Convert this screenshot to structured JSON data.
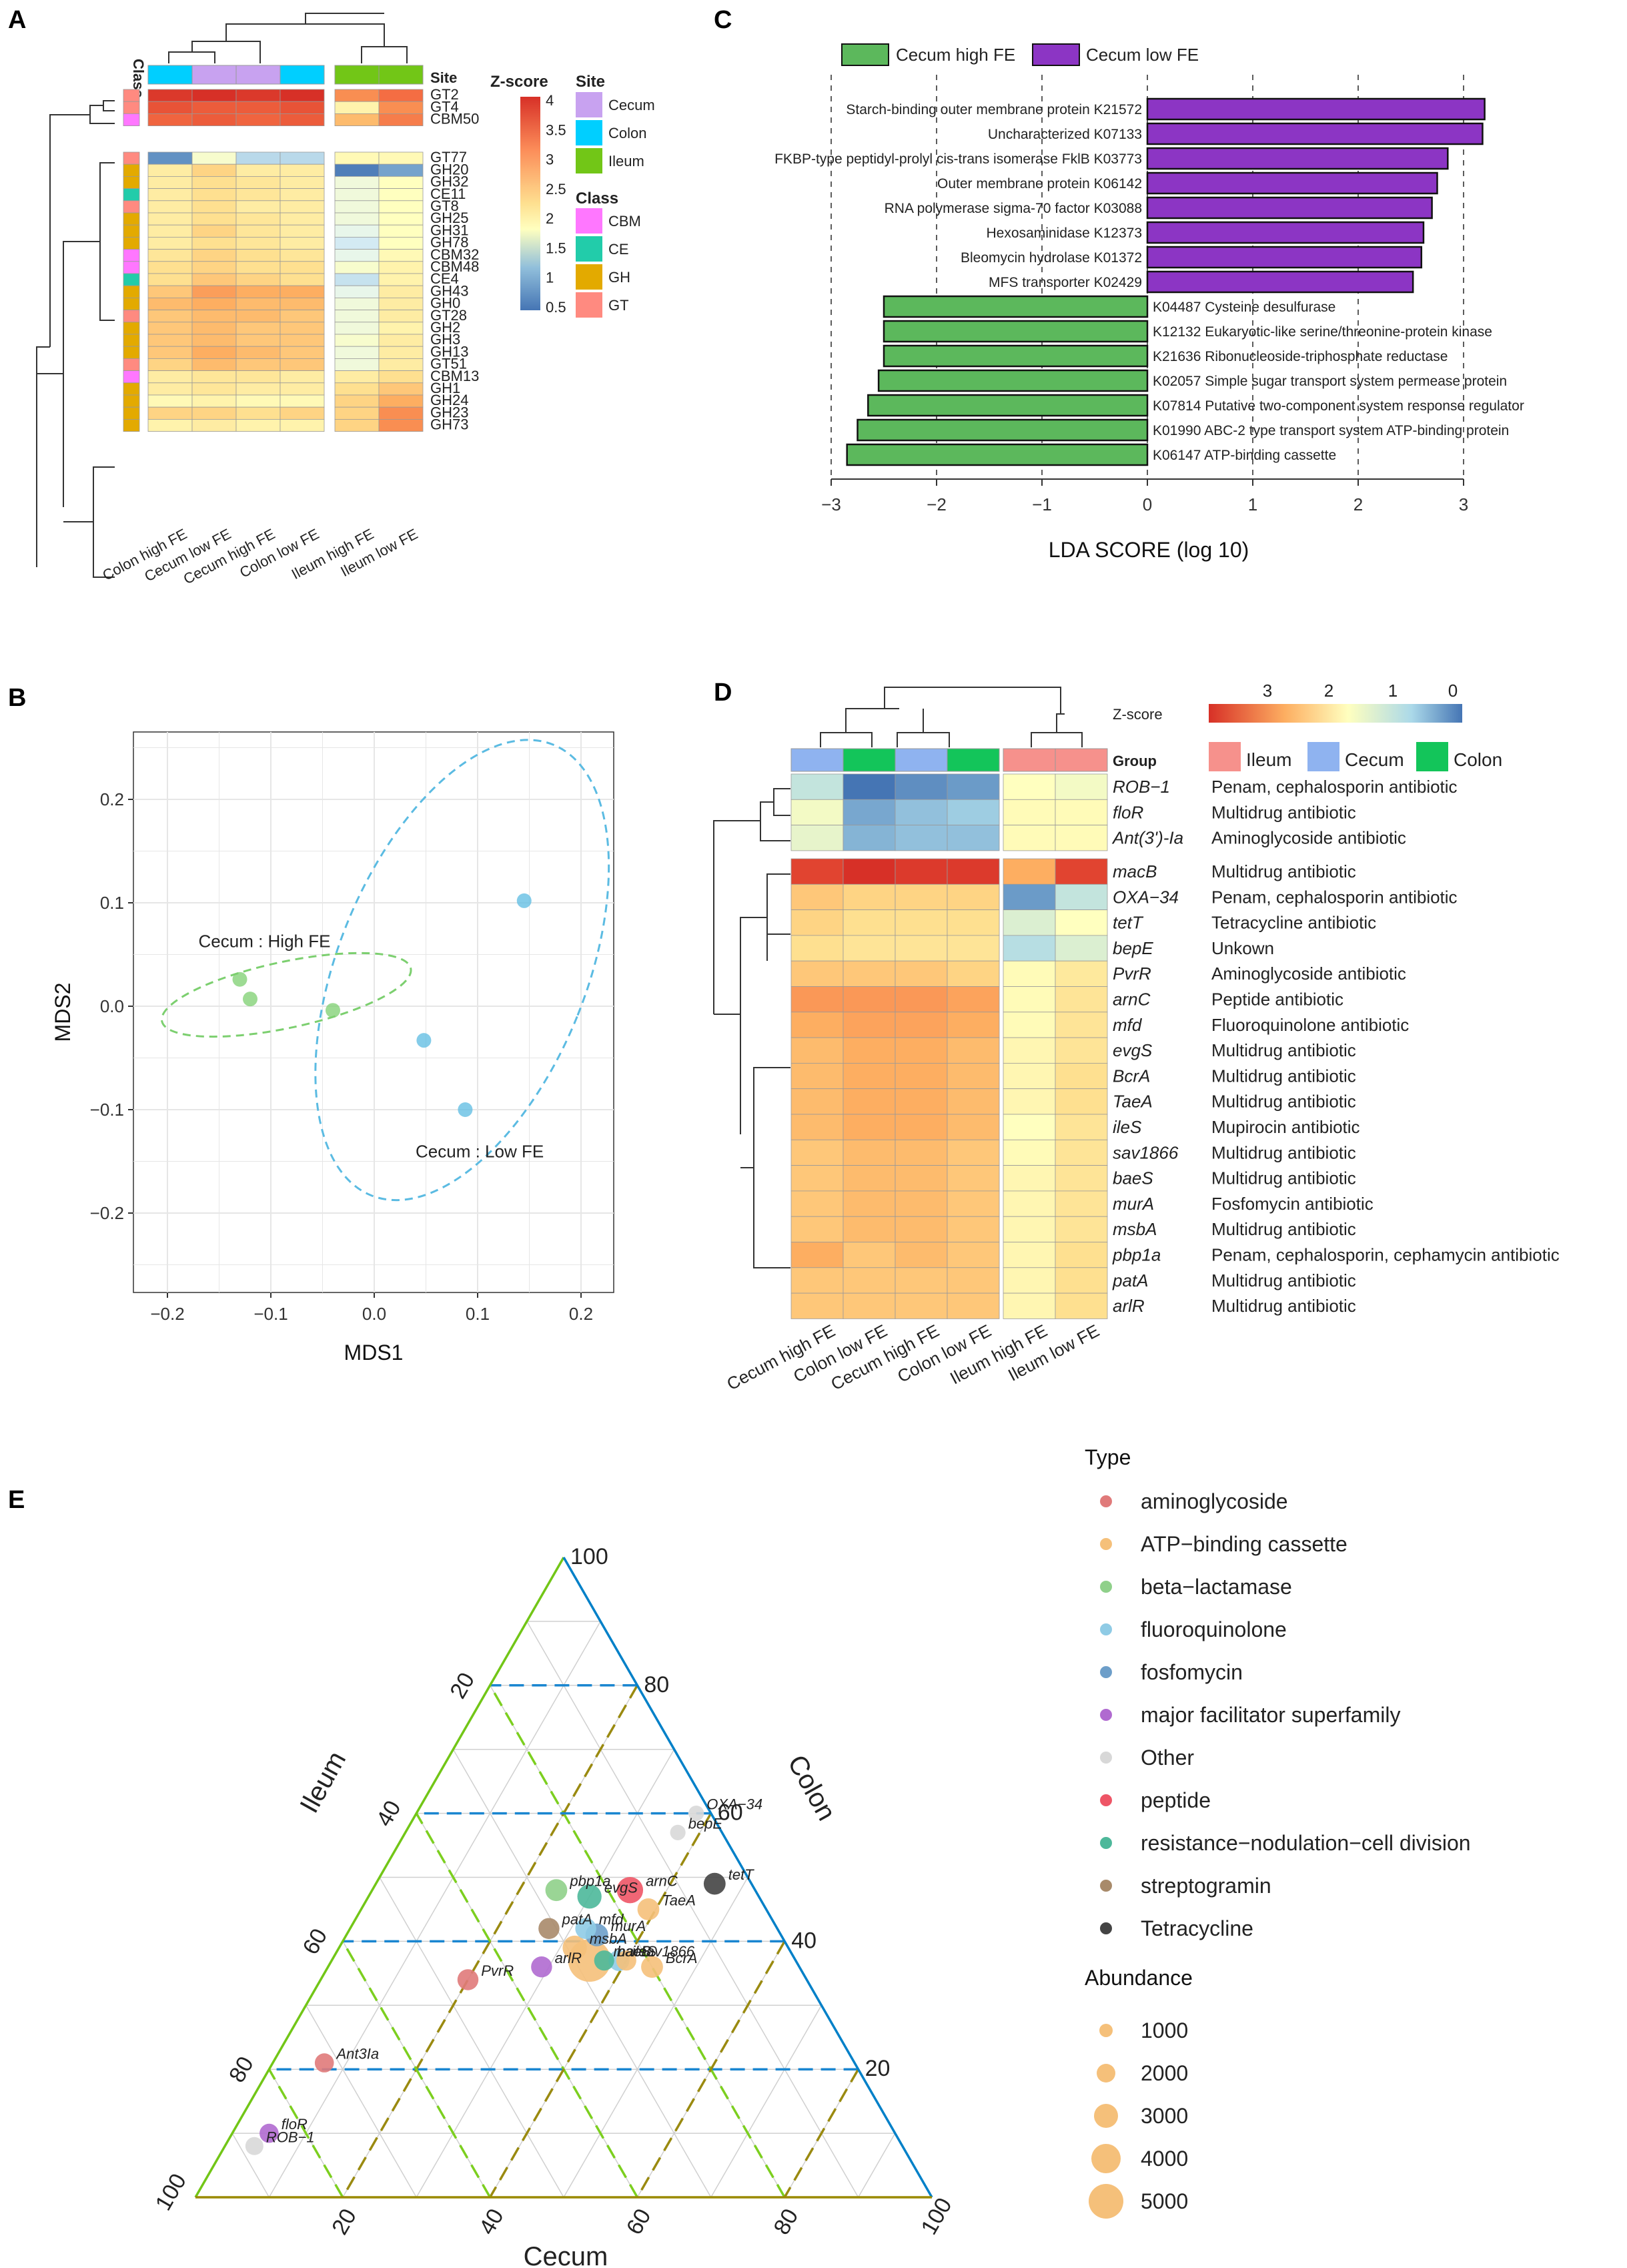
{
  "panels": {
    "a": "A",
    "b": "B",
    "c": "C",
    "d": "D",
    "e": "E"
  },
  "colors": {
    "cecum": "#c8a2f0",
    "colon": "#00cfff",
    "ileum": "#72c617",
    "cbm": "#ff77ff",
    "ce": "#22ccaa",
    "gh": "#e3aa00",
    "gt": "#ff8a80",
    "green_bar": "#5cb85c",
    "purple_bar": "#8c35c4",
    "ileum_d": "#f6918c",
    "cecum_d": "#8fb3f0",
    "colon_d": "#13c55a"
  },
  "heatA": {
    "site_label": "Site",
    "class_label": "Class",
    "columns": [
      "Colon high FE",
      "Cecum low FE",
      "Cecum high FE",
      "Colon low FE",
      "Ileum high FE",
      "Ileum low FE"
    ],
    "col_site": [
      "colon",
      "cecum",
      "cecum",
      "colon",
      "ileum",
      "ileum"
    ],
    "rows": [
      {
        "name": "GT2",
        "cls": "gt",
        "z": [
          4.2,
          4.3,
          4.2,
          4.3,
          3.4,
          3.6
        ]
      },
      {
        "name": "GT4",
        "cls": "gt",
        "z": [
          3.9,
          3.8,
          3.8,
          3.9,
          2.5,
          3.4
        ]
      },
      {
        "name": "CBM50",
        "cls": "cbm",
        "z": [
          3.7,
          3.8,
          3.7,
          3.8,
          3.1,
          3.5
        ]
      },
      {
        "name": "GT77",
        "cls": "gt",
        "z": [
          0.8,
          2.2,
          1.6,
          1.6,
          2.4,
          2.4
        ]
      },
      {
        "name": "GH20",
        "cls": "gh",
        "z": [
          2.6,
          2.9,
          2.6,
          2.6,
          0.6,
          1.0
        ]
      },
      {
        "name": "GH32",
        "cls": "gh",
        "z": [
          2.6,
          2.8,
          2.7,
          2.6,
          2.1,
          2.3
        ]
      },
      {
        "name": "CE11",
        "cls": "ce",
        "z": [
          2.6,
          2.8,
          2.7,
          2.6,
          2.1,
          2.3
        ]
      },
      {
        "name": "GT8",
        "cls": "gt",
        "z": [
          2.6,
          2.8,
          2.6,
          2.6,
          2.1,
          2.3
        ]
      },
      {
        "name": "GH25",
        "cls": "gh",
        "z": [
          2.6,
          2.8,
          2.7,
          2.6,
          2.1,
          2.3
        ]
      },
      {
        "name": "GH31",
        "cls": "gh",
        "z": [
          2.6,
          2.9,
          2.7,
          2.6,
          2.0,
          2.3
        ]
      },
      {
        "name": "GH78",
        "cls": "gh",
        "z": [
          2.6,
          2.8,
          2.7,
          2.6,
          1.8,
          2.3
        ]
      },
      {
        "name": "CBM32",
        "cls": "cbm",
        "z": [
          2.7,
          2.9,
          2.8,
          2.7,
          2.0,
          2.4
        ]
      },
      {
        "name": "CBM48",
        "cls": "cbm",
        "z": [
          2.8,
          2.9,
          2.8,
          2.8,
          2.2,
          2.5
        ]
      },
      {
        "name": "CE4",
        "cls": "ce",
        "z": [
          2.8,
          3.0,
          2.9,
          2.8,
          1.7,
          2.5
        ]
      },
      {
        "name": "GH43",
        "cls": "gh",
        "z": [
          3.0,
          3.3,
          3.2,
          3.2,
          2.0,
          2.6
        ]
      },
      {
        "name": "GH0",
        "cls": "gh",
        "z": [
          3.1,
          3.2,
          3.1,
          3.1,
          2.1,
          2.6
        ]
      },
      {
        "name": "GT28",
        "cls": "gt",
        "z": [
          3.0,
          3.1,
          3.1,
          3.0,
          2.1,
          2.6
        ]
      },
      {
        "name": "GH2",
        "cls": "gh",
        "z": [
          3.0,
          3.1,
          3.0,
          3.0,
          2.1,
          2.5
        ]
      },
      {
        "name": "GH3",
        "cls": "gh",
        "z": [
          3.0,
          3.1,
          3.0,
          3.0,
          2.2,
          2.6
        ]
      },
      {
        "name": "GH13",
        "cls": "gh",
        "z": [
          3.0,
          3.2,
          3.1,
          3.0,
          2.1,
          2.6
        ]
      },
      {
        "name": "GT51",
        "cls": "gt",
        "z": [
          2.9,
          3.1,
          3.0,
          3.0,
          2.1,
          2.6
        ]
      },
      {
        "name": "CBM13",
        "cls": "cbm",
        "z": [
          2.6,
          2.7,
          2.7,
          2.6,
          2.6,
          2.8
        ]
      },
      {
        "name": "GH1",
        "cls": "gh",
        "z": [
          2.6,
          2.7,
          2.6,
          2.6,
          2.8,
          3.0
        ]
      },
      {
        "name": "GH24",
        "cls": "gh",
        "z": [
          2.4,
          2.5,
          2.4,
          2.4,
          2.9,
          3.2
        ]
      },
      {
        "name": "GH23",
        "cls": "gh",
        "z": [
          2.9,
          2.9,
          2.8,
          2.9,
          2.9,
          3.4
        ]
      },
      {
        "name": "GH73",
        "cls": "gh",
        "z": [
          2.5,
          2.6,
          2.5,
          2.5,
          2.9,
          3.4
        ]
      }
    ],
    "legend_zscore": {
      "title": "Z-score",
      "ticks": [
        "4",
        "3.5",
        "3",
        "2.5",
        "2",
        "1.5",
        "1",
        "0.5"
      ]
    },
    "legend_site": {
      "title": "Site",
      "items": [
        "Cecum",
        "Colon",
        "Ileum"
      ]
    },
    "legend_class": {
      "title": "Class",
      "items": [
        "CBM",
        "CE",
        "GH",
        "GT"
      ]
    }
  },
  "chart_data": [
    {
      "panel": "B",
      "type": "scatter",
      "xlabel": "MDS1",
      "ylabel": "MDS2",
      "xlim": [
        -0.24,
        0.23
      ],
      "ylim": [
        -0.265,
        0.265
      ],
      "xticks": [
        -0.2,
        -0.1,
        0.0,
        0.1,
        0.2
      ],
      "xtick_labels": [
        "−0.2",
        "−0.1",
        "0.0",
        "0.1",
        "0.2"
      ],
      "yticks": [
        -0.2,
        -0.1,
        0.0,
        0.1,
        0.2
      ],
      "ytick_labels": [
        "−0.2",
        "−0.1",
        "0.0",
        "0.1",
        "0.2"
      ],
      "series": [
        {
          "name": "Cecum : High  FE",
          "label_x": -0.17,
          "label_y": 0.057,
          "color": "#7ccf6f",
          "points": [
            [
              -0.13,
              0.026
            ],
            [
              -0.12,
              0.007
            ],
            [
              -0.04,
              -0.004
            ]
          ],
          "ellipse": {
            "cx": -0.085,
            "cy": 0.011,
            "rx": 0.123,
            "ry": 0.032,
            "angle": -12
          }
        },
        {
          "name": "Cecum : Low  FE",
          "label_x": 0.04,
          "label_y": -0.146,
          "color": "#5bbbe2",
          "points": [
            [
              0.145,
              0.102
            ],
            [
              0.048,
              -0.033
            ],
            [
              0.088,
              -0.1
            ]
          ],
          "ellipse": {
            "cx": 0.085,
            "cy": 0.035,
            "rx": 0.12,
            "ry": 0.235,
            "angle": 22
          }
        }
      ]
    },
    {
      "panel": "C",
      "type": "bar",
      "xlabel": "LDA SCORE (log 10)",
      "xlim": [
        -3.3,
        3.4
      ],
      "xticks": [
        -3,
        -2,
        -1,
        0,
        1,
        2,
        3
      ],
      "xtick_labels": [
        "−3",
        "−2",
        "−1",
        "0",
        "1",
        "2",
        "3"
      ],
      "legend": [
        "Cecum high FE",
        "Cecum low FE"
      ],
      "categories": [
        "Starch-binding outer membrane protein K21572",
        "Uncharacterized K07133",
        "FKBP-type peptidyl-prolyl cis-trans isomerase FklB K03773",
        "Outer membrane protein K06142",
        "RNA polymerase sigma-70 factor K03088",
        "Hexosaminidase K12373",
        "Bleomycin hydrolase K01372",
        "MFS transporter K02429",
        "K04487 Cysteine desulfurase",
        "K12132 Eukaryotic-like serine/threonine-protein kinase",
        "K21636 Ribonucleoside-triphosphate reductase",
        "K02057 Simple sugar transport system permease protein",
        "K07814 Putative two-component system response regulator",
        "K01990 ABC-2 type transport system ATP-binding protein",
        "K06147 ATP-binding cassette"
      ],
      "values": [
        3.2,
        3.18,
        2.85,
        2.75,
        2.7,
        2.62,
        2.6,
        2.52,
        -2.5,
        -2.5,
        -2.5,
        -2.55,
        -2.65,
        -2.75,
        -2.85
      ],
      "groups": [
        "low",
        "low",
        "low",
        "low",
        "low",
        "low",
        "low",
        "low",
        "high",
        "high",
        "high",
        "high",
        "high",
        "high",
        "high"
      ]
    },
    {
      "panel": "E",
      "type": "scatter",
      "subtype": "ternary",
      "axes": {
        "left": "Ileum",
        "right": "Colon",
        "bottom": "Cecum"
      },
      "ticks": [
        "20",
        "40",
        "60",
        "80",
        "100"
      ],
      "legend_type_title": "Type",
      "legend_abundance_title": "Abundance",
      "types": [
        {
          "name": "aminoglycoside",
          "color": "#e07a7a"
        },
        {
          "name": "ATP−binding cassette",
          "color": "#f5c07a"
        },
        {
          "name": "beta−lactamase",
          "color": "#8fd08a"
        },
        {
          "name": "fluoroquinolone",
          "color": "#8fcbe5"
        },
        {
          "name": "fosfomycin",
          "color": "#6d9ec9"
        },
        {
          "name": "major facilitator superfamily",
          "color": "#b06ad0"
        },
        {
          "name": "Other",
          "color": "#d8d8d8"
        },
        {
          "name": "peptide",
          "color": "#ee5566"
        },
        {
          "name": "resistance−nodulation−cell division",
          "color": "#4db89a"
        },
        {
          "name": "streptogramin",
          "color": "#a88a6a"
        },
        {
          "name": "Tetracycline",
          "color": "#444444"
        }
      ],
      "abundance": [
        "1000",
        "2000",
        "3000",
        "4000",
        "5000"
      ],
      "points": [
        {
          "label": "OXA−34",
          "cecum": 38,
          "colon": 60,
          "ileum": 2,
          "type": "Other",
          "size": 300
        },
        {
          "label": "bepE",
          "cecum": 37,
          "colon": 57,
          "ileum": 6,
          "type": "Other",
          "size": 300
        },
        {
          "label": "tetT",
          "cecum": 46,
          "colon": 49,
          "ileum": 5,
          "type": "Tetracycline",
          "size": 900
        },
        {
          "label": "arnC",
          "cecum": 35,
          "colon": 48,
          "ileum": 17,
          "type": "peptide",
          "size": 1500
        },
        {
          "label": "TaeA",
          "cecum": 39,
          "colon": 45,
          "ileum": 16,
          "type": "ATP−binding cassette",
          "size": 900
        },
        {
          "label": "pbp1a",
          "cecum": 25,
          "colon": 48,
          "ileum": 27,
          "type": "beta−lactamase",
          "size": 900
        },
        {
          "label": "evgS",
          "cecum": 30,
          "colon": 47,
          "ileum": 23,
          "type": "resistance−nodulation−cell division",
          "size": 1200
        },
        {
          "label": "mfd",
          "cecum": 32,
          "colon": 42,
          "ileum": 26,
          "type": "fluoroquinolone",
          "size": 800
        },
        {
          "label": "patA",
          "cecum": 27,
          "colon": 42,
          "ileum": 31,
          "type": "streptogramin",
          "size": 800
        },
        {
          "label": "murA",
          "cecum": 34,
          "colon": 41,
          "ileum": 25,
          "type": "fosfomycin",
          "size": 1000
        },
        {
          "label": "ileS",
          "cecum": 39,
          "colon": 37,
          "ileum": 24,
          "type": "fluoroquinolone",
          "size": 800
        },
        {
          "label": "msbA",
          "cecum": 32,
          "colon": 39,
          "ileum": 29,
          "type": "ATP−binding cassette",
          "size": 1200
        },
        {
          "label": "arlR",
          "cecum": 29,
          "colon": 36,
          "ileum": 35,
          "type": "major facilitator superfamily",
          "size": 800
        },
        {
          "label": "macB",
          "cecum": 35,
          "colon": 37,
          "ileum": 28,
          "type": "ATP−binding cassette",
          "size": 5000
        },
        {
          "label": "baeS",
          "cecum": 37,
          "colon": 37,
          "ileum": 26,
          "type": "resistance−nodulation−cell division",
          "size": 700
        },
        {
          "label": "BcrA",
          "cecum": 44,
          "colon": 36,
          "ileum": 20,
          "type": "ATP−binding cassette",
          "size": 900
        },
        {
          "label": "sav1866",
          "cecum": 40,
          "colon": 37,
          "ileum": 23,
          "type": "ATP−binding cassette",
          "size": 700
        },
        {
          "label": "PvrR",
          "cecum": 20,
          "colon": 34,
          "ileum": 46,
          "type": "aminoglycoside",
          "size": 800
        },
        {
          "label": "Ant3Ia",
          "cecum": 7,
          "colon": 21,
          "ileum": 72,
          "type": "aminoglycoside",
          "size": 600
        },
        {
          "label": "floR",
          "cecum": 5,
          "colon": 10,
          "ileum": 85,
          "type": "major facilitator superfamily",
          "size": 600
        },
        {
          "label": "ROB−1",
          "cecum": 4,
          "colon": 8,
          "ileum": 88,
          "type": "Other",
          "size": 500
        }
      ]
    }
  ],
  "heatD": {
    "group_label": "Group",
    "legend_title": "Z-score",
    "legend_ticks": [
      "3",
      "2",
      "1",
      "0"
    ],
    "legend_groups": [
      "Ileum",
      "Cecum",
      "Colon"
    ],
    "columns": [
      "Cecum high FE",
      "Colon low FE",
      "Cecum high FE",
      "Colon low FE",
      "Ileum high FE",
      "Ileum low FE"
    ],
    "col_group": [
      "cecum",
      "colon",
      "cecum",
      "colon",
      "ileum",
      "ileum"
    ],
    "rows": [
      {
        "gene": "ROB−1",
        "desc": "Penam, cephalosporin antibiotic",
        "z": [
          1.0,
          0.0,
          0.2,
          0.3,
          1.5,
          1.4
        ]
      },
      {
        "gene": "floR",
        "desc": "Multidrug antibiotic",
        "z": [
          1.4,
          0.4,
          0.6,
          0.7,
          1.6,
          1.6
        ]
      },
      {
        "gene": "Ant(3')-Ia",
        "desc": "Aminoglycoside antibiotic",
        "z": [
          1.3,
          0.5,
          0.6,
          0.6,
          1.6,
          1.6
        ]
      },
      {
        "gene": "macB",
        "desc": "Multidrug antibiotic",
        "z": [
          3.6,
          3.8,
          3.7,
          3.7,
          2.6,
          3.6
        ]
      },
      {
        "gene": "OXA−34",
        "desc": "Penam, cephalosporin antibiotic",
        "z": [
          2.4,
          2.3,
          2.3,
          2.3,
          0.3,
          1.0
        ]
      },
      {
        "gene": "tetT",
        "desc": "Tetracycline antibiotic",
        "z": [
          2.3,
          2.2,
          2.2,
          2.2,
          1.2,
          1.5
        ]
      },
      {
        "gene": "bepE",
        "desc": "Unkown",
        "z": [
          2.2,
          2.1,
          2.1,
          2.1,
          0.9,
          1.2
        ]
      },
      {
        "gene": "PvrR",
        "desc": "Aminoglycoside antibiotic",
        "z": [
          2.4,
          2.4,
          2.4,
          2.3,
          1.6,
          2.0
        ]
      },
      {
        "gene": "arnC",
        "desc": "Peptide antibiotic",
        "z": [
          2.8,
          2.8,
          2.8,
          2.7,
          1.6,
          2.1
        ]
      },
      {
        "gene": "mfd",
        "desc": "Fluoroquinolone antibiotic",
        "z": [
          2.6,
          2.7,
          2.7,
          2.6,
          1.6,
          2.1
        ]
      },
      {
        "gene": "evgS",
        "desc": "Multidrug antibiotic",
        "z": [
          2.5,
          2.6,
          2.6,
          2.5,
          1.7,
          2.1
        ]
      },
      {
        "gene": "BcrA",
        "desc": "Multidrug antibiotic",
        "z": [
          2.5,
          2.6,
          2.6,
          2.5,
          1.7,
          2.2
        ]
      },
      {
        "gene": "TaeA",
        "desc": "Multidrug antibiotic",
        "z": [
          2.5,
          2.6,
          2.6,
          2.5,
          1.7,
          2.2
        ]
      },
      {
        "gene": "ileS",
        "desc": "Mupirocin antibiotic",
        "z": [
          2.5,
          2.6,
          2.6,
          2.5,
          1.5,
          2.1
        ]
      },
      {
        "gene": "sav1866",
        "desc": "Multidrug antibiotic",
        "z": [
          2.4,
          2.5,
          2.5,
          2.4,
          1.6,
          2.1
        ]
      },
      {
        "gene": "baeS",
        "desc": "Multidrug antibiotic",
        "z": [
          2.4,
          2.5,
          2.5,
          2.4,
          1.7,
          2.1
        ]
      },
      {
        "gene": "murA",
        "desc": "Fosfomycin antibiotic",
        "z": [
          2.4,
          2.5,
          2.5,
          2.4,
          1.7,
          2.1
        ]
      },
      {
        "gene": "msbA",
        "desc": "Multidrug antibiotic",
        "z": [
          2.4,
          2.5,
          2.5,
          2.4,
          1.7,
          2.1
        ]
      },
      {
        "gene": "pbp1a",
        "desc": "Penam, cephalosporin, cephamycin antibiotic",
        "z": [
          2.6,
          2.4,
          2.5,
          2.4,
          1.7,
          2.2
        ]
      },
      {
        "gene": "patA",
        "desc": "Multidrug antibiotic",
        "z": [
          2.4,
          2.4,
          2.4,
          2.4,
          1.7,
          2.2
        ]
      },
      {
        "gene": "arlR",
        "desc": "Multidrug antibiotic",
        "z": [
          2.4,
          2.4,
          2.4,
          2.4,
          1.7,
          2.2
        ]
      }
    ]
  }
}
